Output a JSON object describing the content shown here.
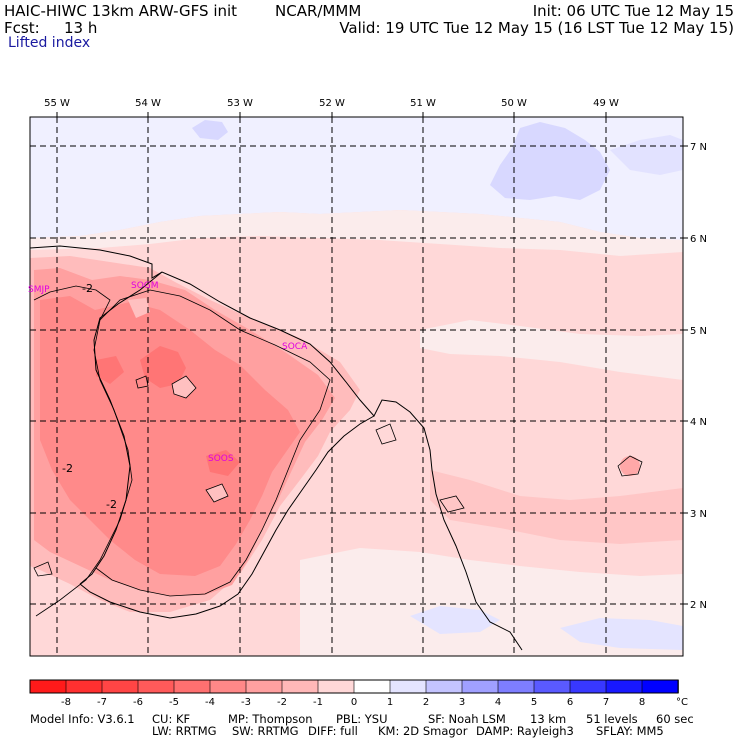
{
  "header": {
    "title_left": "HAIC-HIWC 13km ARW-GFS init",
    "title_center": "NCAR/MMM",
    "init": "Init: 06 UTC Tue 12 May 15",
    "fcst_label": "Fcst:",
    "fcst_value": "13 h",
    "valid": "Valid: 19 UTC Tue 12 May 15 (16 LST Tue 12 May 15)",
    "field": "Lifted index"
  },
  "map": {
    "lon_labels": [
      "55 W",
      "54 W",
      "53 W",
      "52 W",
      "51 W",
      "50 W",
      "49 W"
    ],
    "lat_labels": [
      "7 N",
      "6 N",
      "5 N",
      "4 N",
      "3 N",
      "2 N"
    ],
    "stations": [
      {
        "id": "SMJP",
        "lon": -55.3,
        "lat": 5.45
      },
      {
        "id": "SOGM",
        "lon": -53.9,
        "lat": 5.5
      },
      {
        "id": "SOCA",
        "lon": -52.35,
        "lat": 4.85
      },
      {
        "id": "SOOS",
        "lon": -53.3,
        "lat": 3.7
      }
    ],
    "contour_labels": [
      {
        "text": "-2",
        "lon": -54.65,
        "lat": 5.45
      },
      {
        "text": "-2",
        "lon": -55.0,
        "lat": 3.55
      },
      {
        "text": "-2",
        "lon": -54.5,
        "lat": 3.05
      }
    ]
  },
  "colorbar": {
    "ticks": [
      "-8",
      "-7",
      "-6",
      "-5",
      "-4",
      "-3",
      "-2",
      "-1",
      "0",
      "1",
      "2",
      "3",
      "4",
      "5",
      "6",
      "7",
      "8"
    ],
    "unit": "°C",
    "colors": [
      "#ff1a1a",
      "#ff3030",
      "#ff4545",
      "#ff5a5a",
      "#ff7070",
      "#ff8888",
      "#ffa0a0",
      "#ffb8b8",
      "#ffd8d8",
      "#ffffff",
      "#e4e4ff",
      "#c4c4ff",
      "#a0a0ff",
      "#7e7eff",
      "#5a5aff",
      "#3838ff",
      "#1818ff",
      "#0000ff"
    ]
  },
  "footer": {
    "line1": [
      "Model Info: V3.6.1",
      "CU: KF",
      "MP: Thompson",
      "PBL: YSU",
      "SF: Noah LSM",
      "13 km",
      "51 levels",
      "60 sec"
    ],
    "line2": [
      "LW: RRTMG",
      "SW: RRTMG",
      "DIFF: full",
      "KM: 2D Smagor",
      "DAMP: Rayleigh3",
      "SFLAY: MM5"
    ]
  }
}
